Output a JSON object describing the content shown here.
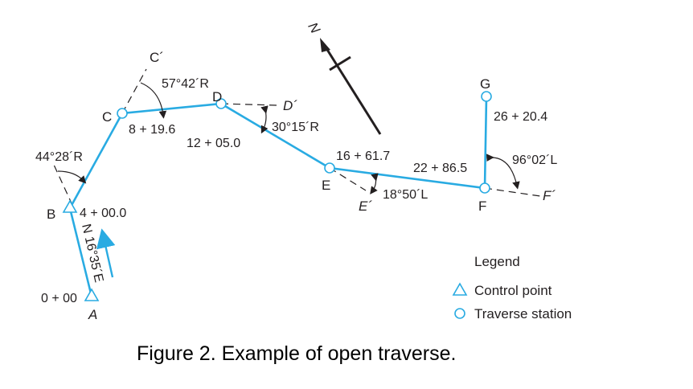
{
  "north_label": "N",
  "points": {
    "A": "A",
    "B": "B",
    "C": "C",
    "D": "D",
    "E": "E",
    "F": "F",
    "G": "G",
    "C_prime": "C´",
    "D_prime": "D´",
    "E_prime": "E´",
    "F_prime": "F´"
  },
  "stations": {
    "A": "0 + 00",
    "B": "4 + 00.0",
    "C": "8 + 19.6",
    "D": "12 + 05.0",
    "E": "16 + 61.7",
    "F": "22 + 86.5",
    "G": "26 + 20.4"
  },
  "angles": {
    "B": "44°28´R",
    "C": "57°42´R",
    "D": "30°15´R",
    "E": "18°50´L",
    "F": "96°02´L"
  },
  "bearing_AB": "N 16°35´E",
  "legend": {
    "title": "Legend",
    "items": [
      {
        "label": "Control point",
        "symbol": "triangle"
      },
      {
        "label": "Traverse station",
        "symbol": "circle"
      }
    ]
  },
  "caption": "Figure 2. Example of open traverse.",
  "colors": {
    "traverse_line": "#29abe2",
    "text": "#231f20"
  }
}
